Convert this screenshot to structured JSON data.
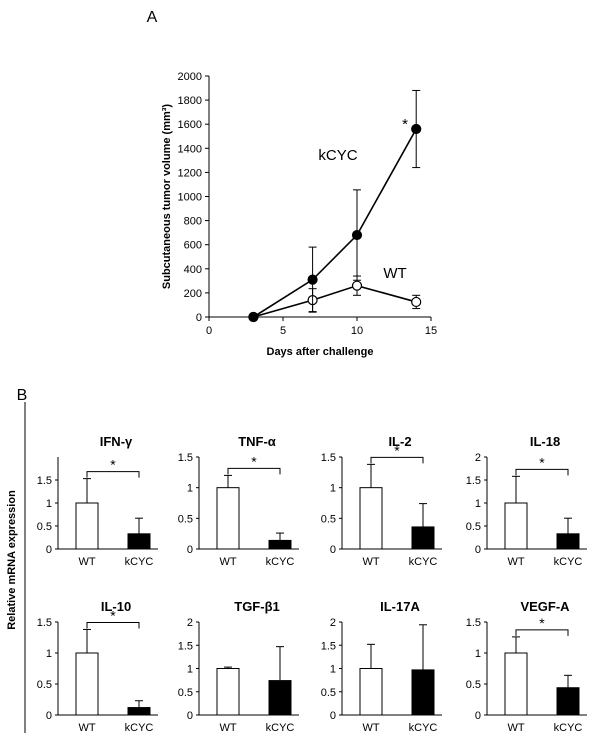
{
  "panel_labels": {
    "a": "A",
    "b": "B"
  },
  "panel_b_ylabel": "Relative mRNA expression",
  "colors": {
    "wt_fill": "#ffffff",
    "kcyc_fill": "#000000",
    "axis": "#000000"
  },
  "chart_data": [
    {
      "type": "line",
      "title": "",
      "xlabel": "Days after challenge",
      "ylabel": "Subcutaneous tumor volume (mm³)",
      "xlim": [
        0,
        15
      ],
      "ylim": [
        0,
        2000
      ],
      "xticks": [
        0,
        5,
        10,
        15
      ],
      "yticks": [
        0,
        200,
        400,
        600,
        800,
        1000,
        1200,
        1400,
        1600,
        1800,
        2000
      ],
      "x": [
        3,
        7,
        10,
        14
      ],
      "series": [
        {
          "name": "kCYC",
          "marker": "filled-circle",
          "values": [
            0,
            310,
            680,
            1560
          ],
          "err": [
            0,
            270,
            375,
            320
          ]
        },
        {
          "name": "WT",
          "marker": "open-circle",
          "values": [
            0,
            140,
            260,
            125
          ],
          "err": [
            0,
            95,
            80,
            55
          ]
        }
      ],
      "annotations": [
        {
          "text": "*",
          "near": "kCYC day 14"
        }
      ]
    },
    {
      "type": "bar",
      "title": "IFN-γ",
      "categories": [
        "WT",
        "kCYC"
      ],
      "values": [
        1.0,
        0.33
      ],
      "err": [
        0.53,
        0.34
      ],
      "ylim": [
        0,
        2.0
      ],
      "yticks": [
        0,
        0.5,
        1,
        1.5
      ],
      "ytick_labels": [
        "0",
        "0.5",
        "1",
        "1.5"
      ],
      "significance": "*"
    },
    {
      "type": "bar",
      "title": "TNF-α",
      "categories": [
        "WT",
        "kCYC"
      ],
      "values": [
        1.0,
        0.14
      ],
      "err": [
        0.2,
        0.12
      ],
      "ylim": [
        0,
        1.5
      ],
      "yticks": [
        0,
        0.5,
        1,
        1.5
      ],
      "ytick_labels": [
        "0",
        "0.5",
        "1",
        "1.5"
      ],
      "significance": "*"
    },
    {
      "type": "bar",
      "title": "IL-2",
      "categories": [
        "WT",
        "kCYC"
      ],
      "values": [
        1.0,
        0.36
      ],
      "err": [
        0.38,
        0.38
      ],
      "ylim": [
        0,
        1.5
      ],
      "yticks": [
        0,
        0.5,
        1,
        1.5
      ],
      "ytick_labels": [
        "0",
        "0.5",
        "1",
        "1.5"
      ],
      "significance": "*"
    },
    {
      "type": "bar",
      "title": "IL-18",
      "categories": [
        "WT",
        "kCYC"
      ],
      "values": [
        1.0,
        0.33
      ],
      "err": [
        0.58,
        0.34
      ],
      "ylim": [
        0,
        2.0
      ],
      "yticks": [
        0,
        0.5,
        1,
        1.5,
        2
      ],
      "ytick_labels": [
        "0",
        "0.5",
        "1",
        "1.5",
        "2"
      ],
      "significance": "*"
    },
    {
      "type": "bar",
      "title": "IL-10",
      "categories": [
        "WT",
        "kCYC"
      ],
      "values": [
        1.0,
        0.12
      ],
      "err": [
        0.38,
        0.11
      ],
      "ylim": [
        0,
        1.5
      ],
      "yticks": [
        0,
        0.5,
        1,
        1.5
      ],
      "ytick_labels": [
        "0",
        "0.5",
        "1",
        "1.5"
      ],
      "significance": "*"
    },
    {
      "type": "bar",
      "title": "TGF-β1",
      "categories": [
        "WT",
        "kCYC"
      ],
      "values": [
        1.0,
        0.74
      ],
      "err": [
        0.03,
        0.73
      ],
      "ylim": [
        0,
        2.0
      ],
      "yticks": [
        0,
        0.5,
        1,
        1.5,
        2
      ],
      "ytick_labels": [
        "0",
        "0.5",
        "1",
        "1.5",
        "2"
      ],
      "significance": ""
    },
    {
      "type": "bar",
      "title": "IL-17A",
      "categories": [
        "WT",
        "kCYC"
      ],
      "values": [
        1.0,
        0.97
      ],
      "err": [
        0.52,
        0.97
      ],
      "ylim": [
        0,
        2.0
      ],
      "yticks": [
        0,
        0.5,
        1,
        1.5,
        2
      ],
      "ytick_labels": [
        "0",
        "0.5",
        "1",
        "1.5",
        "2"
      ],
      "significance": ""
    },
    {
      "type": "bar",
      "title": "VEGF-A",
      "categories": [
        "WT",
        "kCYC"
      ],
      "values": [
        1.0,
        0.44
      ],
      "err": [
        0.26,
        0.2
      ],
      "ylim": [
        0,
        1.5
      ],
      "yticks": [
        0,
        0.5,
        1,
        1.5
      ],
      "ytick_labels": [
        "0",
        "0.5",
        "1",
        "1.5"
      ],
      "significance": "*"
    }
  ]
}
